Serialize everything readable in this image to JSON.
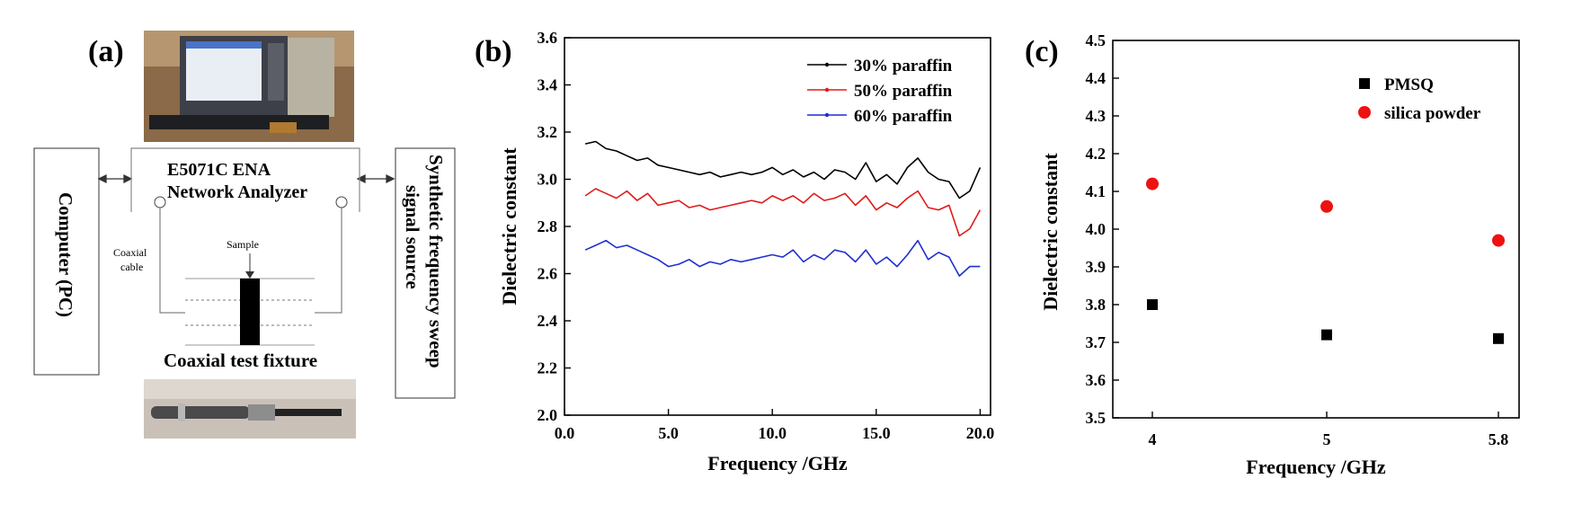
{
  "panel_a": {
    "label": "(a)",
    "analyzer_line1": "E5071C ENA",
    "analyzer_line2": "Network Analyzer",
    "computer": "Computer (PC)",
    "source_line1": "Synthetic frequency sweep",
    "source_line2": "signal source",
    "coaxial_line1": "Coaxial",
    "coaxial_line2": "cable",
    "sample": "Sample",
    "fixture": "Coaxial test fixture"
  },
  "chart_data": [
    {
      "panel_label": "(b)",
      "type": "line",
      "xlabel": "Frequency /GHz",
      "ylabel": "Dielectric constant",
      "xlim": [
        0,
        20.5
      ],
      "ylim": [
        2.0,
        3.6
      ],
      "xticks": [
        0,
        5,
        10,
        15,
        20
      ],
      "xtick_labels": [
        "0.0",
        "5.0",
        "10.0",
        "15.0",
        "20.0"
      ],
      "yticks": [
        2.0,
        2.2,
        2.4,
        2.6,
        2.8,
        3.0,
        3.2,
        3.4,
        3.6
      ],
      "ytick_labels": [
        "2.0",
        "2.2",
        "2.4",
        "2.6",
        "2.8",
        "3.0",
        "3.2",
        "3.4",
        "3.6"
      ],
      "legend_position": "top-right",
      "x": [
        1.0,
        1.5,
        2.0,
        2.5,
        3.0,
        3.5,
        4.0,
        4.5,
        5.0,
        5.5,
        6.0,
        6.5,
        7.0,
        7.5,
        8.0,
        8.5,
        9.0,
        9.5,
        10.0,
        10.5,
        11.0,
        11.5,
        12.0,
        12.5,
        13.0,
        13.5,
        14.0,
        14.5,
        15.0,
        15.5,
        16.0,
        16.5,
        17.0,
        17.5,
        18.0,
        18.5,
        19.0,
        19.5,
        20.0
      ],
      "series": [
        {
          "name": "30% paraffin",
          "color": "#000000",
          "values": [
            3.15,
            3.16,
            3.13,
            3.12,
            3.1,
            3.08,
            3.09,
            3.06,
            3.05,
            3.04,
            3.03,
            3.02,
            3.03,
            3.01,
            3.02,
            3.03,
            3.02,
            3.03,
            3.05,
            3.02,
            3.04,
            3.01,
            3.03,
            3.0,
            3.04,
            3.03,
            3.0,
            3.07,
            2.99,
            3.02,
            2.98,
            3.05,
            3.09,
            3.03,
            3.0,
            2.99,
            2.92,
            2.95,
            3.05
          ]
        },
        {
          "name": "50% paraffin",
          "color": "#e01b1b",
          "values": [
            2.93,
            2.96,
            2.94,
            2.92,
            2.95,
            2.91,
            2.94,
            2.89,
            2.9,
            2.91,
            2.88,
            2.89,
            2.87,
            2.88,
            2.89,
            2.9,
            2.91,
            2.9,
            2.93,
            2.91,
            2.93,
            2.9,
            2.94,
            2.91,
            2.92,
            2.94,
            2.89,
            2.93,
            2.87,
            2.9,
            2.88,
            2.92,
            2.95,
            2.88,
            2.87,
            2.89,
            2.76,
            2.79,
            2.87
          ]
        },
        {
          "name": "60% paraffin",
          "color": "#1f2fd0",
          "values": [
            2.7,
            2.72,
            2.74,
            2.71,
            2.72,
            2.7,
            2.68,
            2.66,
            2.63,
            2.64,
            2.66,
            2.63,
            2.65,
            2.64,
            2.66,
            2.65,
            2.66,
            2.67,
            2.68,
            2.67,
            2.7,
            2.65,
            2.68,
            2.66,
            2.7,
            2.69,
            2.65,
            2.7,
            2.64,
            2.67,
            2.63,
            2.68,
            2.74,
            2.66,
            2.69,
            2.67,
            2.59,
            2.63,
            2.63
          ]
        }
      ]
    },
    {
      "panel_label": "(c)",
      "type": "scatter",
      "xlabel": "Frequency /GHz",
      "ylabel": "Dielectric constant",
      "categories": [
        "4",
        "5",
        "5.8"
      ],
      "ylim": [
        3.5,
        4.5
      ],
      "yticks": [
        3.5,
        3.6,
        3.7,
        3.8,
        3.9,
        4.0,
        4.1,
        4.2,
        4.3,
        4.4,
        4.5
      ],
      "ytick_labels": [
        "3.5",
        "3.6",
        "3.7",
        "3.8",
        "3.9",
        "4.0",
        "4.1",
        "4.2",
        "4.3",
        "4.4",
        "4.5"
      ],
      "legend_position": "top-right",
      "series": [
        {
          "name": "PMSQ",
          "marker": "square",
          "color": "#000000",
          "values": [
            3.8,
            3.72,
            3.71
          ]
        },
        {
          "name": "silica powder",
          "marker": "circle",
          "color": "#ee1111",
          "values": [
            4.12,
            4.06,
            3.97
          ]
        }
      ]
    }
  ]
}
